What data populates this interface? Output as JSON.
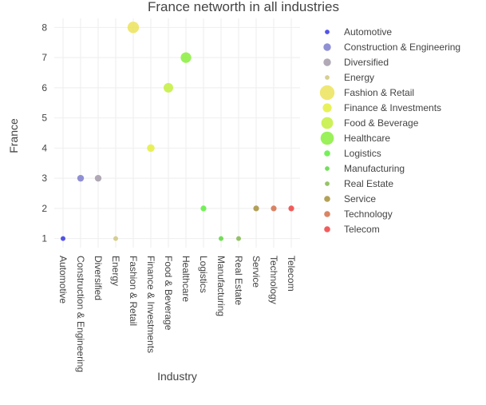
{
  "chart_data": {
    "type": "scatter",
    "title": "France networth in all industries",
    "xlabel": "Industry",
    "ylabel": "France",
    "categories": [
      "Automotive",
      "Construction & Engineering",
      "Diversified",
      "Energy",
      "Fashion & Retail",
      "Finance & Investments",
      "Food & Beverage",
      "Healthcare",
      "Logistics",
      "Manufacturing",
      "Real Estate",
      "Service",
      "Technology",
      "Telecom"
    ],
    "series": [
      {
        "name": "Automotive",
        "x": "Automotive",
        "y": 1,
        "color": "#3535e6"
      },
      {
        "name": "Construction & Engineering",
        "x": "Construction & Engineering",
        "y": 3,
        "color": "#7c7ccc"
      },
      {
        "name": "Diversified",
        "x": "Diversified",
        "y": 3,
        "color": "#a39aa8"
      },
      {
        "name": "Energy",
        "x": "Energy",
        "y": 1,
        "color": "#cfc77e"
      },
      {
        "name": "Fashion & Retail",
        "x": "Fashion & Retail",
        "y": 8,
        "color": "#ece35a"
      },
      {
        "name": "Finance & Investments",
        "x": "Finance & Investments",
        "y": 4,
        "color": "#e4ee3c"
      },
      {
        "name": "Food & Beverage",
        "x": "Food & Beverage",
        "y": 6,
        "color": "#c3ee3c"
      },
      {
        "name": "Healthcare",
        "x": "Healthcare",
        "y": 7,
        "color": "#88ee3c"
      },
      {
        "name": "Logistics",
        "x": "Logistics",
        "y": 2,
        "color": "#5ced3c"
      },
      {
        "name": "Manufacturing",
        "x": "Manufacturing",
        "y": 1,
        "color": "#5ad93c"
      },
      {
        "name": "Real Estate",
        "x": "Real Estate",
        "y": 1,
        "color": "#84b84e"
      },
      {
        "name": "Service",
        "x": "Service",
        "y": 2,
        "color": "#a69139"
      },
      {
        "name": "Technology",
        "x": "Technology",
        "y": 2,
        "color": "#d46f4a"
      },
      {
        "name": "Telecom",
        "x": "Telecom",
        "y": 2,
        "color": "#f04040"
      }
    ],
    "y_ticks": [
      1,
      2,
      3,
      4,
      5,
      6,
      7,
      8
    ],
    "ylim": [
      0.7,
      8.3
    ],
    "grid": true,
    "legend_position": "right"
  }
}
